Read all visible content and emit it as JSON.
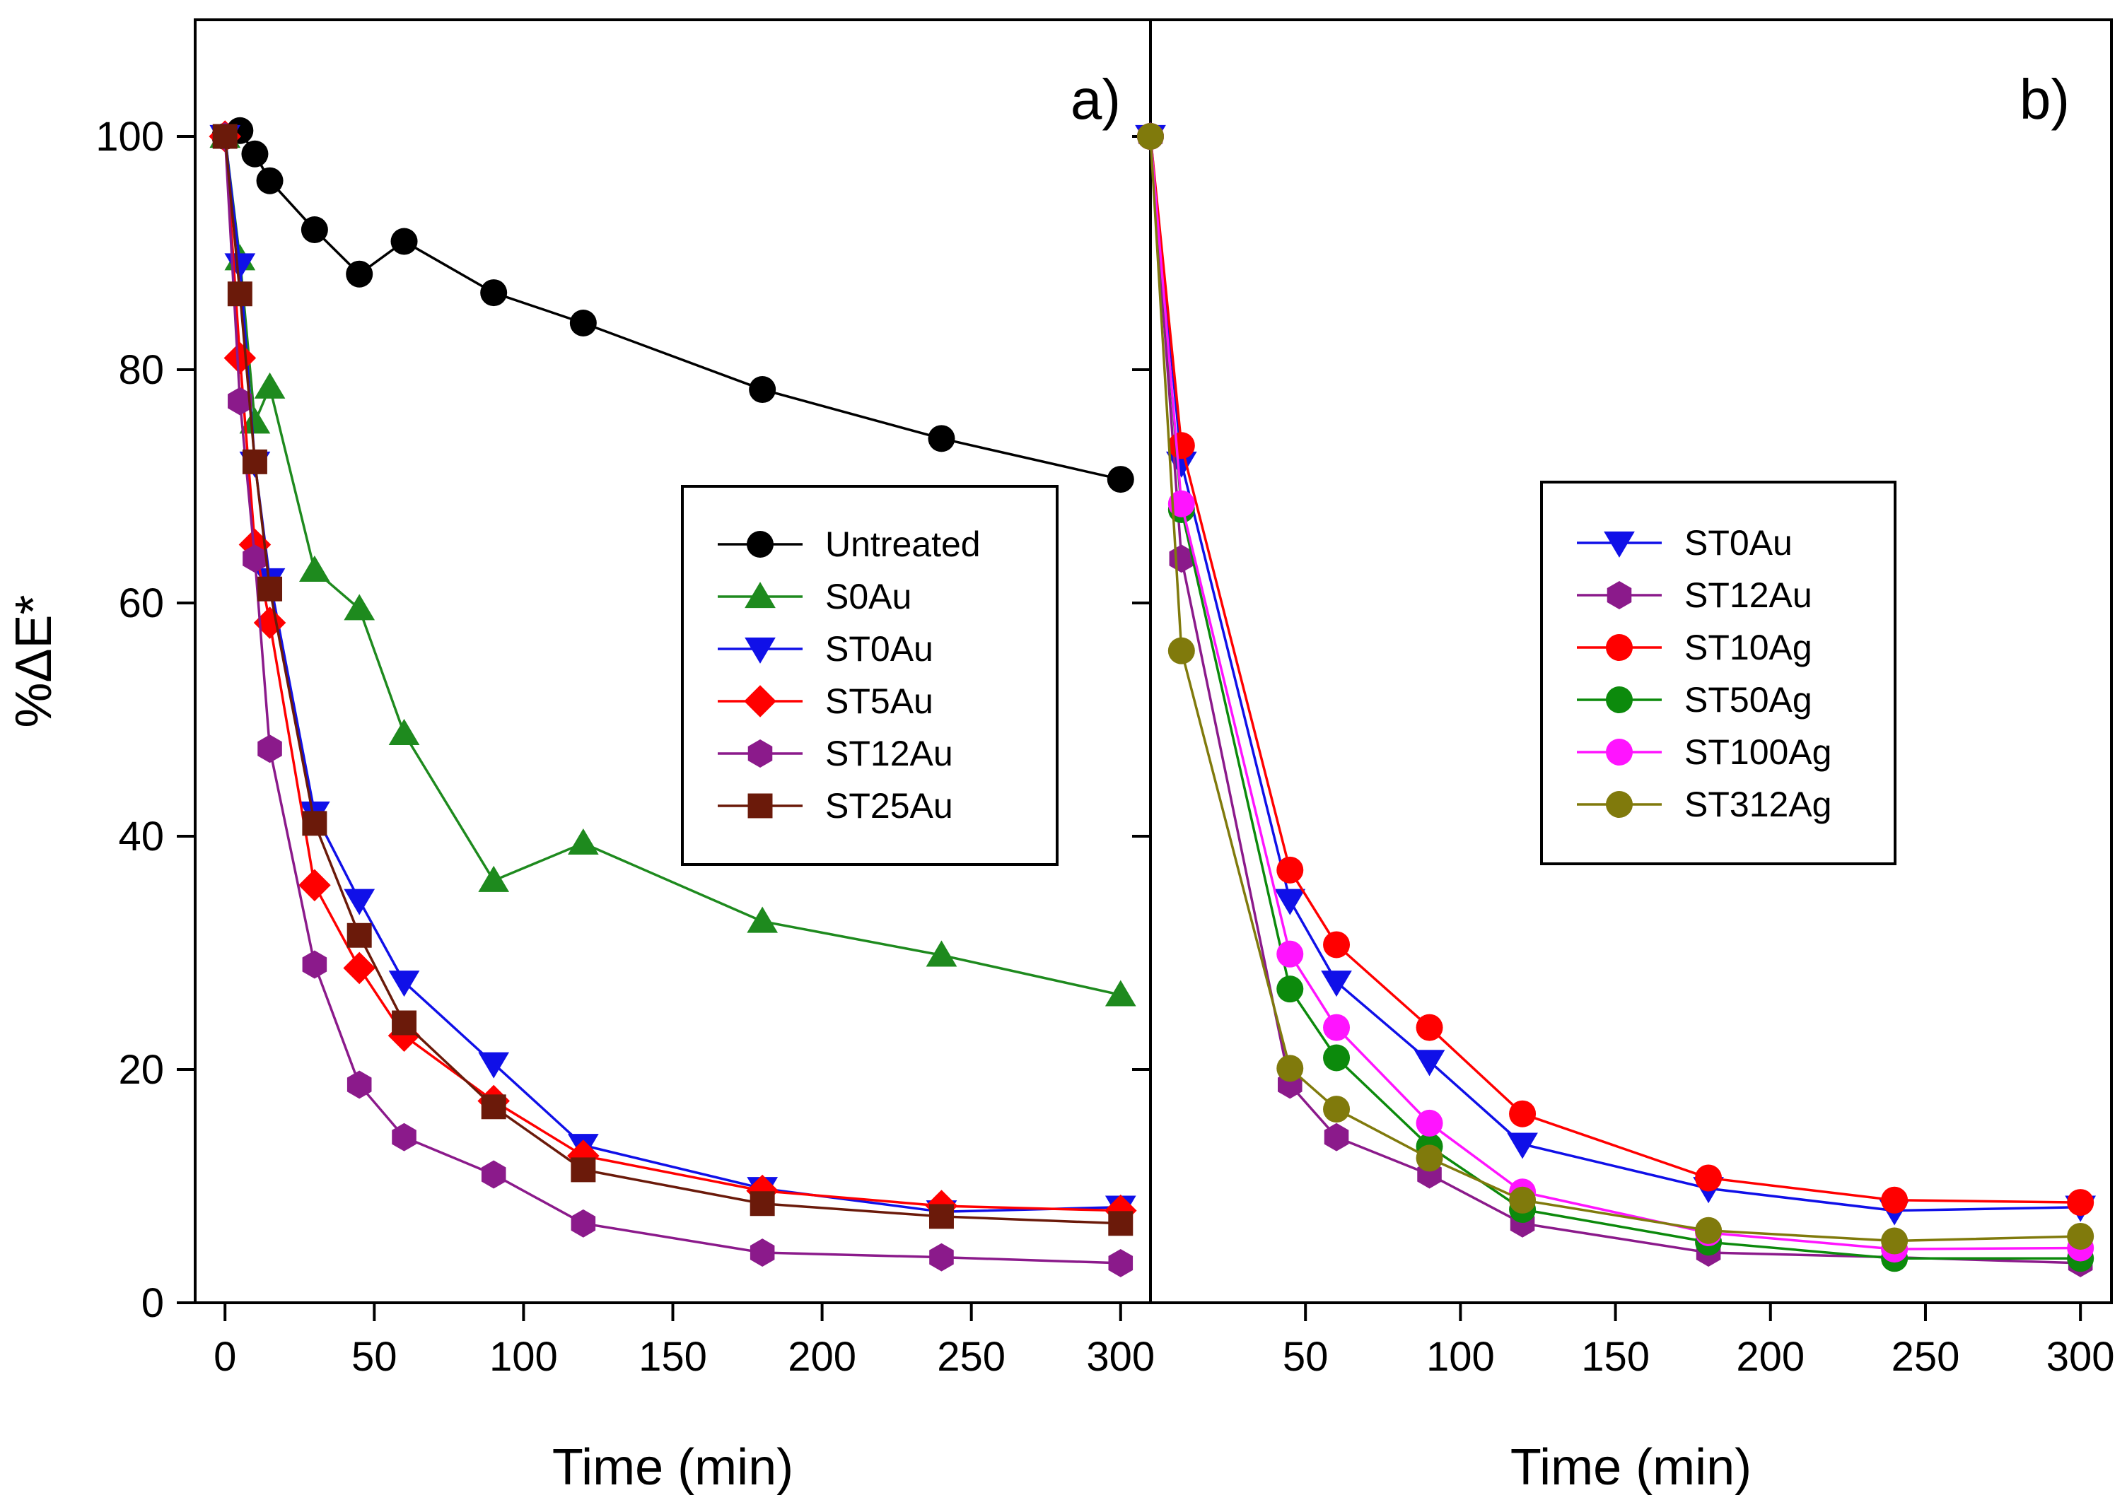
{
  "chart_data": {
    "type": "line",
    "ylabel": "%ΔE*",
    "xlabel": "Time (min)",
    "ylim": [
      0,
      110
    ],
    "yticks": [
      "0",
      "20",
      "40",
      "60",
      "80",
      "100"
    ],
    "panels": [
      {
        "label": "a)",
        "xlim": [
          -10,
          310
        ],
        "xticks": [
          "0",
          "50",
          "100",
          "150",
          "200",
          "250",
          "300"
        ],
        "legend_position": "center-right",
        "series": [
          {
            "name": "Untreated",
            "color": "#000000",
            "marker": "circle",
            "x": [
              0,
              5,
              10,
              15,
              30,
              45,
              60,
              90,
              120,
              180,
              240,
              300
            ],
            "y": [
              100,
              100.5,
              98.5,
              96.2,
              92,
              88.2,
              91,
              86.6,
              84,
              78.3,
              74.1,
              70.6
            ]
          },
          {
            "name": "S0Au",
            "color": "#1e8a1e",
            "marker": "triangle-up",
            "x": [
              0,
              5,
              10,
              15,
              30,
              45,
              60,
              90,
              120,
              180,
              240,
              300
            ],
            "y": [
              100,
              89.5,
              75.5,
              78.5,
              62.8,
              59.5,
              48.8,
              36.2,
              39.4,
              32.7,
              29.8,
              26.4
            ]
          },
          {
            "name": "ST0Au",
            "color": "#1010e8",
            "marker": "triangle-down",
            "x": [
              0,
              5,
              10,
              15,
              30,
              45,
              60,
              90,
              120,
              180,
              240,
              300
            ],
            "y": [
              100,
              89,
              72,
              62,
              42,
              34.5,
              27.5,
              20.5,
              13.5,
              9.8,
              7.8,
              8.2
            ]
          },
          {
            "name": "ST5Au",
            "color": "#ff0000",
            "marker": "diamond",
            "x": [
              0,
              5,
              10,
              15,
              30,
              45,
              60,
              90,
              120,
              180,
              240,
              300
            ],
            "y": [
              100,
              81,
              65,
              58.3,
              35.8,
              28.7,
              22.9,
              17.3,
              12.6,
              9.6,
              8.3,
              7.9
            ]
          },
          {
            "name": "ST12Au",
            "color": "#8b1a8b",
            "marker": "hexagon",
            "x": [
              0,
              5,
              10,
              15,
              30,
              45,
              60,
              90,
              120,
              180,
              240,
              300
            ],
            "y": [
              100,
              77.3,
              63.8,
              47.5,
              29,
              18.7,
              14.2,
              11,
              6.8,
              4.3,
              3.9,
              3.4
            ]
          },
          {
            "name": "ST25Au",
            "color": "#6b1a0a",
            "marker": "square",
            "x": [
              0,
              5,
              10,
              15,
              30,
              45,
              60,
              90,
              120,
              180,
              240,
              300
            ],
            "y": [
              100,
              86.5,
              72.1,
              61.2,
              41.1,
              31.5,
              24,
              16.8,
              11.4,
              8.5,
              7.4,
              6.8
            ]
          }
        ]
      },
      {
        "label": "b)",
        "xlim": [
          0,
          310
        ],
        "xticks": [
          "50",
          "100",
          "150",
          "200",
          "250",
          "300"
        ],
        "legend_position": "center-right",
        "series": [
          {
            "name": "ST0Au",
            "color": "#1010e8",
            "marker": "triangle-down",
            "x": [
              0,
              10,
              45,
              60,
              90,
              120,
              180,
              240,
              300
            ],
            "y": [
              100,
              72,
              34.5,
              27.5,
              20.7,
              13.6,
              9.8,
              7.9,
              8.2
            ]
          },
          {
            "name": "ST12Au",
            "color": "#8b1a8b",
            "marker": "hexagon",
            "x": [
              0,
              10,
              45,
              60,
              90,
              120,
              180,
              240,
              300
            ],
            "y": [
              100,
              63.8,
              18.7,
              14.2,
              11,
              6.8,
              4.3,
              3.9,
              3.4
            ]
          },
          {
            "name": "ST10Ag",
            "color": "#ff0000",
            "marker": "circle",
            "x": [
              0,
              10,
              45,
              60,
              90,
              120,
              180,
              240,
              300
            ],
            "y": [
              100,
              73.5,
              37.1,
              30.7,
              23.6,
              16.2,
              10.7,
              8.8,
              8.6
            ]
          },
          {
            "name": "ST50Ag",
            "color": "#0c8a0c",
            "marker": "circle",
            "x": [
              0,
              10,
              45,
              60,
              90,
              120,
              180,
              240,
              300
            ],
            "y": [
              100,
              68,
              26.9,
              21,
              13.4,
              8,
              5.2,
              3.8,
              3.8
            ]
          },
          {
            "name": "ST100Ag",
            "color": "#ff14ff",
            "marker": "circle",
            "x": [
              0,
              10,
              45,
              60,
              90,
              120,
              180,
              240,
              300
            ],
            "y": [
              100,
              68.5,
              29.9,
              23.6,
              15.4,
              9.5,
              6,
              4.6,
              4.7
            ]
          },
          {
            "name": "ST312Ag",
            "color": "#807a0c",
            "marker": "circle",
            "x": [
              0,
              10,
              45,
              60,
              90,
              120,
              180,
              240,
              300
            ],
            "y": [
              100,
              55.9,
              20.1,
              16.6,
              12.4,
              8.8,
              6.2,
              5.3,
              5.7
            ]
          }
        ]
      }
    ]
  }
}
